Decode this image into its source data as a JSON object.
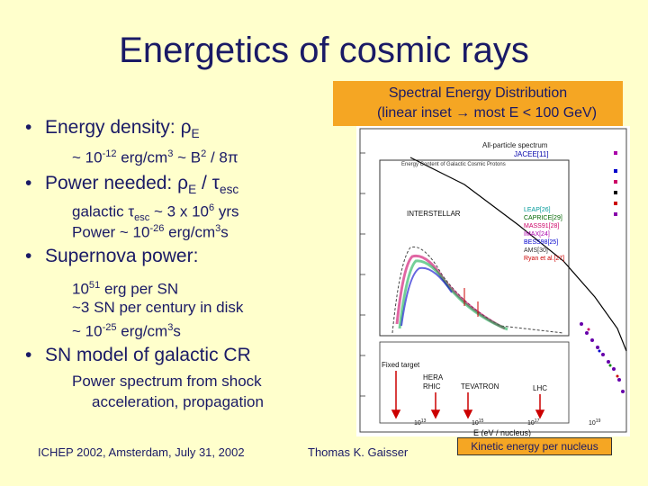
{
  "slide": {
    "title": "Energetics of cosmic rays",
    "bullets": [
      {
        "text": "Energy density: ρ",
        "sub": "E"
      },
      {
        "text": "Power needed: ρ",
        "sub": "E",
        "text2": " / τ",
        "sub2": "esc"
      },
      {
        "text": "Supernova power:"
      },
      {
        "text": "SN model of galactic CR"
      }
    ],
    "lines": {
      "energy_density": "~ 10-12 erg/cm3 ~ B2 / 8π",
      "tau_esc": "galactic τesc ~ 3 x 106 yrs",
      "power": "Power ~ 10-26 erg/cm3s",
      "sn1": "1051 erg per SN",
      "sn2": "~3 SN per century in disk",
      "sn3": "~ 10-25 erg/cm3s",
      "model1": "Power spectrum from shock",
      "model2": "acceleration, propagation"
    },
    "inset_header": {
      "line1": "Spectral Energy Distribution",
      "line2": "(linear inset → most E < 100 GeV)"
    },
    "footer": {
      "left": "ICHEP 2002, Amsterdam, July 31, 2002",
      "center": "Thomas K. Gaisser",
      "right": "Kinetic energy per nucleus"
    }
  },
  "chart_data": {
    "type": "scatter",
    "title": "",
    "xlabel": "E   (eV / nucleus)",
    "ylabel": "",
    "x_ticks": [
      "10^13",
      "10^15",
      "10^17",
      "10^19"
    ],
    "log_x": true,
    "log_y": true,
    "legend": [
      "All-particle spectrum",
      "JACEE[11]",
      "LEAP[26]",
      "CAPRICE[29]",
      "MASS91[28]",
      "IMAX[24]",
      "BESS98[25]",
      "AMS[30]",
      "Ryan et al.[27]"
    ],
    "annotations": [
      "INTERSTELLAR",
      "Energy Content of Galactic Cosmic Protons",
      "Fixed target",
      "HERA",
      "RHIC",
      "TEVATRON",
      "LHC"
    ],
    "colors": {
      "background": "#ffffcc",
      "title": "#1a1a66",
      "highlight": "#f5a623",
      "accelerator_arrows": "#cc0000"
    }
  }
}
